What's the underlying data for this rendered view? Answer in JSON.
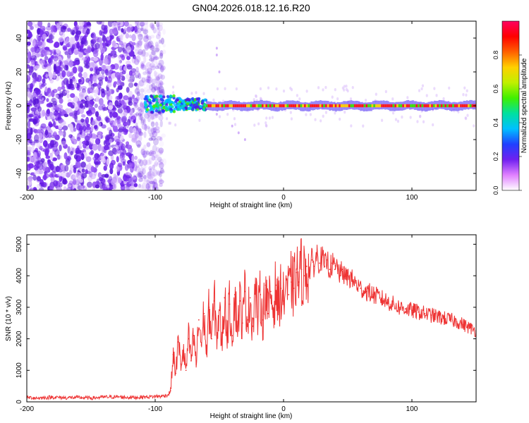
{
  "figure_title": "GN04.2026.018.12.16.R20",
  "chart_data": [
    {
      "type": "heatmap",
      "title": "GN04.2026.018.12.16.R20",
      "xlabel": "Height of straight line (km)",
      "ylabel": "Frequency (Hz)",
      "xlim": [
        -200,
        150
      ],
      "ylim": [
        -50,
        50
      ],
      "xticks": [
        -200,
        -100,
        0,
        100
      ],
      "yticks": [
        -40,
        -20,
        0,
        20,
        40
      ],
      "colorbar": {
        "label": "Normalized spectral amplitude",
        "range": [
          0,
          1
        ],
        "ticks": [
          "0.0",
          "0.2",
          "0.4",
          "0.6",
          "0.8"
        ],
        "tick_values": [
          0.0,
          0.2,
          0.4,
          0.6,
          0.8
        ],
        "colors": [
          "#ffffff",
          "#e080ff",
          "#7020f0",
          "#2040ff",
          "#00c0ff",
          "#00e0a0",
          "#40f000",
          "#c0f000",
          "#ffd000",
          "#ff6000",
          "#ff0000",
          "#ff0060"
        ]
      },
      "regions": [
        {
          "name": "noise",
          "x_range": [
            -200,
            -93
          ],
          "freq_range": [
            -50,
            50
          ],
          "amplitude": 0.2
        },
        {
          "name": "signal-onset",
          "x_range": [
            -108,
            -60
          ],
          "freq_range": [
            -4,
            6
          ],
          "amplitude": 0.6
        },
        {
          "name": "signal-line",
          "x_range": [
            -60,
            150
          ],
          "center_freq": 0,
          "amplitude": 0.95
        }
      ]
    },
    {
      "type": "line",
      "xlabel": "Height of straight line (km)",
      "ylabel": "SNR (10 * v/v)",
      "xlim": [
        -200,
        150
      ],
      "ylim": [
        0,
        5300
      ],
      "xticks": [
        -200,
        -100,
        0,
        100
      ],
      "yticks": [
        0,
        1000,
        2000,
        3000,
        4000,
        5000
      ],
      "series": [
        {
          "name": "SNR",
          "color": "#ee3333",
          "x": [
            -200,
            -190,
            -180,
            -170,
            -160,
            -150,
            -140,
            -130,
            -120,
            -110,
            -100,
            -95,
            -90,
            -88,
            -86,
            -84,
            -82,
            -80,
            -78,
            -76,
            -74,
            -72,
            -70,
            -68,
            -66,
            -64,
            -62,
            -60,
            -58,
            -56,
            -54,
            -52,
            -50,
            -48,
            -46,
            -44,
            -42,
            -40,
            -38,
            -36,
            -34,
            -32,
            -30,
            -28,
            -26,
            -24,
            -22,
            -20,
            -18,
            -16,
            -14,
            -12,
            -10,
            -8,
            -6,
            -4,
            -2,
            0,
            2,
            4,
            6,
            8,
            10,
            12,
            14,
            16,
            18,
            20,
            22,
            24,
            26,
            28,
            30,
            32,
            34,
            36,
            38,
            40,
            42,
            44,
            46,
            48,
            50,
            55,
            60,
            65,
            70,
            75,
            80,
            85,
            90,
            95,
            100,
            105,
            110,
            115,
            120,
            125,
            130,
            135,
            140,
            145,
            150
          ],
          "y": [
            140,
            120,
            150,
            130,
            140,
            120,
            150,
            160,
            140,
            150,
            170,
            180,
            220,
            350,
            1500,
            900,
            1900,
            1200,
            1600,
            1000,
            2000,
            1300,
            2100,
            1200,
            2600,
            1800,
            2800,
            1500,
            3000,
            2000,
            3200,
            2100,
            2900,
            1800,
            3300,
            2200,
            3100,
            2100,
            3400,
            2400,
            3200,
            2500,
            3500,
            2600,
            3300,
            2400,
            3600,
            2700,
            3400,
            2600,
            3700,
            2800,
            3500,
            2900,
            3700,
            3000,
            3600,
            3200,
            3900,
            3400,
            3800,
            3600,
            4100,
            3800,
            4200,
            4000,
            4300,
            4100,
            4500,
            4300,
            4700,
            4400,
            4600,
            4300,
            4500,
            4200,
            4400,
            4200,
            4300,
            4000,
            4200,
            3900,
            4000,
            3800,
            3600,
            3500,
            3400,
            3300,
            3200,
            3100,
            3000,
            2950,
            2900,
            2850,
            2800,
            2750,
            2700,
            2650,
            2600,
            2550,
            2450,
            2350,
            2250
          ]
        }
      ]
    }
  ]
}
